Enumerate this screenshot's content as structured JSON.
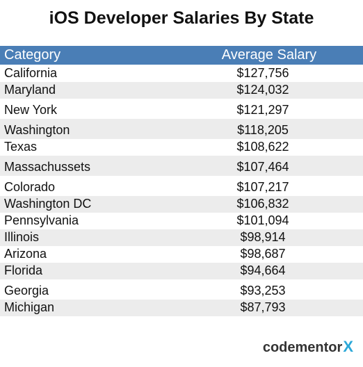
{
  "title": "iOS Developer Salaries By State",
  "table": {
    "headers": {
      "category": "Category",
      "salary": "Average Salary"
    },
    "rows": [
      {
        "category": "California",
        "salary": "$127,756"
      },
      {
        "category": "Maryland",
        "salary": "$124,032"
      },
      {
        "category": "New York",
        "salary": "$121,297"
      },
      {
        "category": "Washington",
        "salary": "$118,205"
      },
      {
        "category": "Texas",
        "salary": "$108,622"
      },
      {
        "category": "Massachussets",
        "salary": "$107,464"
      },
      {
        "category": "Colorado",
        "salary": "$107,217"
      },
      {
        "category": "Washington DC",
        "salary": "$106,832"
      },
      {
        "category": "Pennsylvania",
        "salary": "$101,094"
      },
      {
        "category": "Illinois",
        "salary": "$98,914"
      },
      {
        "category": "Arizona",
        "salary": "$98,687"
      },
      {
        "category": "Florida",
        "salary": "$94,664"
      },
      {
        "category": "Georgia",
        "salary": "$93,253"
      },
      {
        "category": "Michigan",
        "salary": "$87,793"
      }
    ]
  },
  "logo": {
    "text": "codementor",
    "mark": "X"
  },
  "colors": {
    "header_bg": "#4a7eb6",
    "header_text": "#ffffff",
    "alt_row_bg": "#ececec",
    "logo_accent": "#2ba8d8"
  }
}
